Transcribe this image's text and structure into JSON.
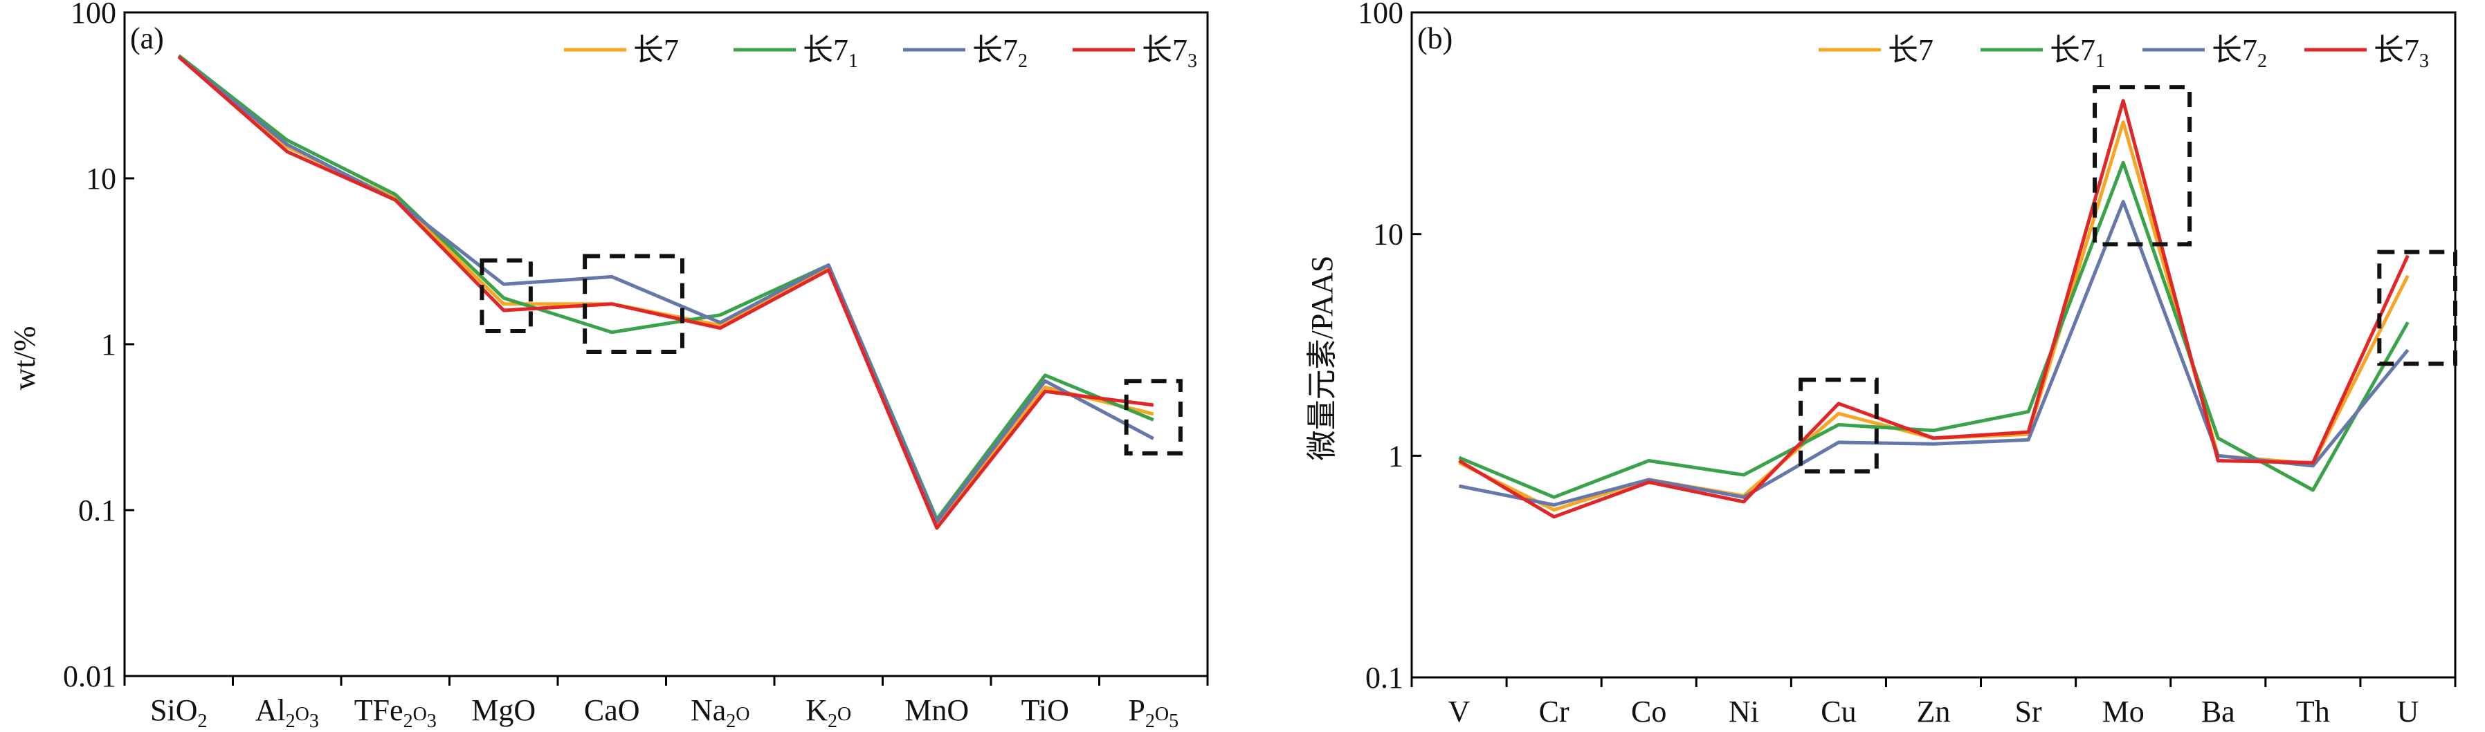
{
  "colors": {
    "c7": "#f5a623",
    "c7_1": "#3aa34a",
    "c7_2": "#6677aa",
    "c7_3": "#e02626",
    "axis": "#000000",
    "box": "#111111"
  },
  "chart_data": [
    {
      "type": "line",
      "panel_label": "(a)",
      "ylabel": "wt/%",
      "y_scale": "log",
      "ylim": [
        0.01,
        100
      ],
      "y_ticks": [
        "0.01",
        "0.1",
        "1",
        "10",
        "100"
      ],
      "legend": "top-right",
      "categories": [
        {
          "base": "SiO",
          "sub": "2",
          "rest": ""
        },
        {
          "base": "Al",
          "sub": "2",
          "rest": "O",
          "sub2": "3"
        },
        {
          "base": "TFe",
          "sub": "2",
          "rest": "O",
          "sub2": "3"
        },
        {
          "base": "MgO",
          "sub": "",
          "rest": ""
        },
        {
          "base": "CaO",
          "sub": "",
          "rest": ""
        },
        {
          "base": "Na",
          "sub": "2",
          "rest": "O"
        },
        {
          "base": "K",
          "sub": "2",
          "rest": "O"
        },
        {
          "base": "MnO",
          "sub": "",
          "rest": ""
        },
        {
          "base": "TiO",
          "sub": "",
          "rest": ""
        },
        {
          "base": "P",
          "sub": "2",
          "rest": "O",
          "sub2": "5"
        }
      ],
      "series": [
        {
          "name": "长7",
          "sub": "",
          "color_key": "c7",
          "values": [
            54,
            15.5,
            7.6,
            1.75,
            1.75,
            1.3,
            2.9,
            0.082,
            0.55,
            0.38
          ]
        },
        {
          "name": "长7",
          "sub": "1",
          "color_key": "c7_1",
          "values": [
            55,
            17,
            8.0,
            1.9,
            1.18,
            1.5,
            3.0,
            0.088,
            0.65,
            0.35
          ]
        },
        {
          "name": "长7",
          "sub": "2",
          "color_key": "c7_2",
          "values": [
            54,
            16,
            7.4,
            2.3,
            2.55,
            1.35,
            3.0,
            0.085,
            0.6,
            0.27
          ]
        },
        {
          "name": "长7",
          "sub": "3",
          "color_key": "c7_3",
          "values": [
            54,
            14.5,
            7.4,
            1.6,
            1.75,
            1.25,
            2.8,
            0.078,
            0.52,
            0.43
          ]
        }
      ],
      "boxes": [
        {
          "x1": 2.8,
          "x2": 3.25,
          "y_top": 3.2,
          "y_bottom": 1.2
        },
        {
          "x1": 3.75,
          "x2": 4.65,
          "y_top": 3.4,
          "y_bottom": 0.9
        },
        {
          "x1": 8.75,
          "x2": 9.25,
          "y_top": 0.6,
          "y_bottom": 0.22
        }
      ]
    },
    {
      "type": "line",
      "panel_label": "(b)",
      "ylabel": "微量元素/PAAS",
      "y_scale": "log",
      "ylim": [
        0.1,
        100
      ],
      "y_ticks": [
        "0.1",
        "1",
        "10",
        "100"
      ],
      "legend": "top-right",
      "categories": [
        {
          "base": "V",
          "sub": "",
          "rest": ""
        },
        {
          "base": "Cr",
          "sub": "",
          "rest": ""
        },
        {
          "base": "Co",
          "sub": "",
          "rest": ""
        },
        {
          "base": "Ni",
          "sub": "",
          "rest": ""
        },
        {
          "base": "Cu",
          "sub": "",
          "rest": ""
        },
        {
          "base": "Zn",
          "sub": "",
          "rest": ""
        },
        {
          "base": "Sr",
          "sub": "",
          "rest": ""
        },
        {
          "base": "Mo",
          "sub": "",
          "rest": ""
        },
        {
          "base": "Ba",
          "sub": "",
          "rest": ""
        },
        {
          "base": "Th",
          "sub": "",
          "rest": ""
        },
        {
          "base": "U",
          "sub": "",
          "rest": ""
        }
      ],
      "series": [
        {
          "name": "长7",
          "sub": "",
          "color_key": "c7",
          "values": [
            0.93,
            0.57,
            0.78,
            0.66,
            1.55,
            1.2,
            1.25,
            32,
            1.0,
            0.92,
            6.5
          ]
        },
        {
          "name": "长7",
          "sub": "1",
          "color_key": "c7_1",
          "values": [
            0.98,
            0.65,
            0.95,
            0.82,
            1.38,
            1.3,
            1.58,
            21,
            1.2,
            0.7,
            4.0
          ]
        },
        {
          "name": "长7",
          "sub": "2",
          "color_key": "c7_2",
          "values": [
            0.73,
            0.6,
            0.78,
            0.65,
            1.15,
            1.13,
            1.18,
            14,
            1.0,
            0.9,
            3.0
          ]
        },
        {
          "name": "长7",
          "sub": "3",
          "color_key": "c7_3",
          "values": [
            0.95,
            0.53,
            0.76,
            0.62,
            1.72,
            1.2,
            1.28,
            40,
            0.95,
            0.93,
            8.0
          ]
        }
      ],
      "boxes": [
        {
          "x1": 3.6,
          "x2": 4.4,
          "y_top": 2.2,
          "y_bottom": 0.85
        },
        {
          "x1": 6.7,
          "x2": 7.7,
          "y_top": 46,
          "y_bottom": 9.0
        },
        {
          "x1": 9.7,
          "x2": 10.5,
          "y_top": 8.3,
          "y_bottom": 2.6
        }
      ]
    }
  ]
}
